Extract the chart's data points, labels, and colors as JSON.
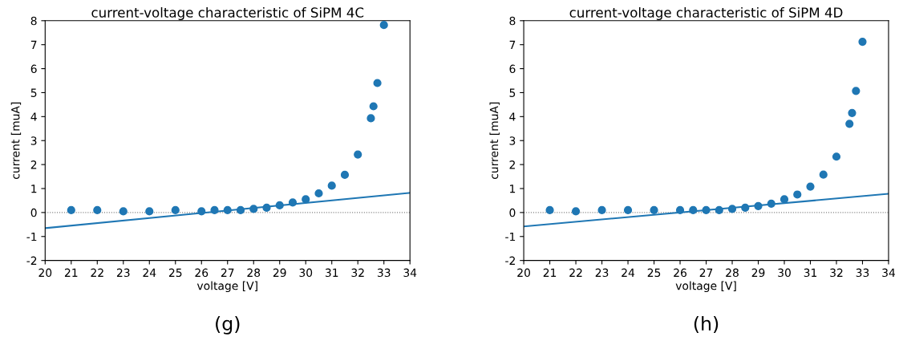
{
  "chart_data": [
    {
      "type": "scatter",
      "title": "current-voltage characteristic of SiPM 4C",
      "xlabel": "voltage [V]",
      "ylabel": "current [muA]",
      "xlim": [
        20,
        34
      ],
      "ylim": [
        -2,
        8
      ],
      "xticks": [
        20,
        21,
        22,
        23,
        24,
        25,
        26,
        27,
        28,
        29,
        30,
        31,
        32,
        33,
        34
      ],
      "yticks": [
        -2,
        -1,
        0,
        1,
        2,
        3,
        4,
        5,
        6,
        7,
        8
      ],
      "grid": false,
      "legend": false,
      "series": [
        {
          "marker": "circle",
          "color": "#1f77b4",
          "x": [
            21,
            22,
            23,
            24,
            25,
            26,
            26.5,
            27,
            27.5,
            28,
            28.5,
            29,
            29.5,
            30,
            30.5,
            31,
            31.5,
            32,
            32.5,
            32.6,
            32.75,
            33
          ],
          "values": [
            0.1,
            0.1,
            0.05,
            0.05,
            0.1,
            0.05,
            0.1,
            0.1,
            0.1,
            0.15,
            0.2,
            0.3,
            0.42,
            0.55,
            0.8,
            1.12,
            1.57,
            2.42,
            3.93,
            4.43,
            5.4,
            7.82
          ]
        },
        {
          "type": "line",
          "color": "#1f77b4",
          "x": [
            20,
            34
          ],
          "values": [
            -0.65,
            0.82
          ]
        }
      ],
      "ref_lines": [
        {
          "axis": "y",
          "value": 0,
          "color": "#808080",
          "line_style": "dotted"
        }
      ],
      "annotations": [
        "(g)"
      ]
    },
    {
      "type": "scatter",
      "title": "current-voltage characteristic of SiPM 4D",
      "xlabel": "voltage [V]",
      "ylabel": "current [muA]",
      "xlim": [
        20,
        34
      ],
      "ylim": [
        -2,
        8
      ],
      "xticks": [
        20,
        21,
        22,
        23,
        24,
        25,
        26,
        27,
        28,
        29,
        30,
        31,
        32,
        33,
        34
      ],
      "yticks": [
        -2,
        -1,
        0,
        1,
        2,
        3,
        4,
        5,
        6,
        7,
        8
      ],
      "grid": false,
      "legend": false,
      "series": [
        {
          "marker": "circle",
          "color": "#1f77b4",
          "x": [
            21,
            22,
            23,
            24,
            25,
            26,
            26.5,
            27,
            27.5,
            28,
            28.5,
            29,
            29.5,
            30,
            30.5,
            31,
            31.5,
            32,
            32.5,
            32.6,
            32.75,
            33
          ],
          "values": [
            0.1,
            0.05,
            0.1,
            0.1,
            0.1,
            0.1,
            0.1,
            0.1,
            0.1,
            0.15,
            0.2,
            0.27,
            0.37,
            0.55,
            0.75,
            1.08,
            1.58,
            2.33,
            3.7,
            4.15,
            5.07,
            7.12
          ]
        },
        {
          "type": "line",
          "color": "#1f77b4",
          "x": [
            20,
            34
          ],
          "values": [
            -0.58,
            0.78
          ]
        }
      ],
      "ref_lines": [
        {
          "axis": "y",
          "value": 0,
          "color": "#808080",
          "line_style": "dotted"
        }
      ],
      "annotations": [
        "(h)"
      ]
    }
  ]
}
